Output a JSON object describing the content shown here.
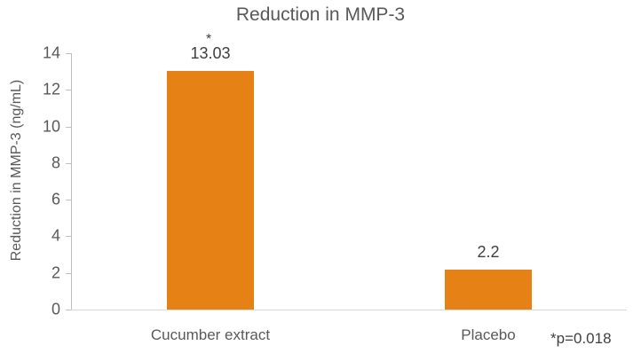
{
  "chart_data": {
    "type": "bar",
    "title": "Reduction in MMP-3",
    "xlabel": "",
    "ylabel": "Reduction in MMP-3 (ng/mL)",
    "categories": [
      "Cucumber extract",
      "Placebo"
    ],
    "values": [
      13.03,
      2.2
    ],
    "value_labels": [
      "13.03",
      "2.2"
    ],
    "annotations": [
      {
        "target": "Cucumber extract",
        "text": "*"
      },
      {
        "position": "bottom-right",
        "text": "*p=0.018"
      }
    ],
    "ylim": [
      0,
      14
    ],
    "yticks": [
      0,
      2,
      4,
      6,
      8,
      10,
      12,
      14
    ],
    "grid": false,
    "legend": null,
    "colors": {
      "bar": "#e58115"
    }
  },
  "labels": {
    "title": "Reduction in MMP-3",
    "ylabel": "Reduction in MMP-3 (ng/mL)",
    "yticks": [
      "0",
      "2",
      "4",
      "6",
      "8",
      "10",
      "12",
      "14"
    ],
    "bar1_value": "13.03",
    "bar2_value": "2.2",
    "bar1_star": "*",
    "cat1": "Cucumber extract",
    "cat2": "Placebo",
    "footnote": "*p=0.018"
  }
}
